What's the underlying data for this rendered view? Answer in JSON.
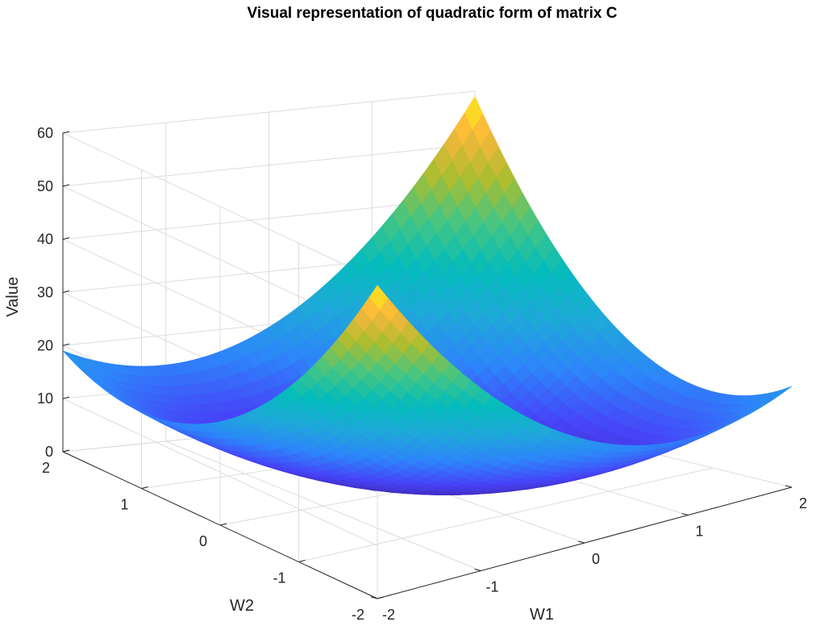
{
  "chart_data": {
    "type": "surface",
    "title": "Visual representation of quadratic form of matrix C",
    "xlabel": "W1",
    "ylabel": "W2",
    "zlabel": "Value",
    "xlim": [
      -2,
      2
    ],
    "ylim": [
      -2,
      2
    ],
    "zlim": [
      0,
      60
    ],
    "x_ticks": [
      "-2",
      "-1",
      "0",
      "1",
      "2"
    ],
    "y_ticks": [
      "-2",
      "-1",
      "0",
      "1",
      "2"
    ],
    "z_ticks": [
      "0",
      "10",
      "20",
      "30",
      "40",
      "50",
      "60"
    ],
    "grid": true,
    "colormap": "parula",
    "colormap_stops": [
      "#3e26a8",
      "#4743f8",
      "#2d85fa",
      "#1fa8d9",
      "#04bcbc",
      "#44c584",
      "#abbd2f",
      "#fcb63c",
      "#f9fb0e"
    ],
    "corner_values": [
      {
        "x": 2,
        "y": 2,
        "z": 59
      },
      {
        "x": -2,
        "y": 2,
        "z": 24
      },
      {
        "x": 2,
        "y": -2,
        "z": 19
      },
      {
        "x": -2,
        "y": -2,
        "z": 28
      }
    ],
    "minimum": {
      "x": 0,
      "y": 0,
      "z": 0
    }
  }
}
